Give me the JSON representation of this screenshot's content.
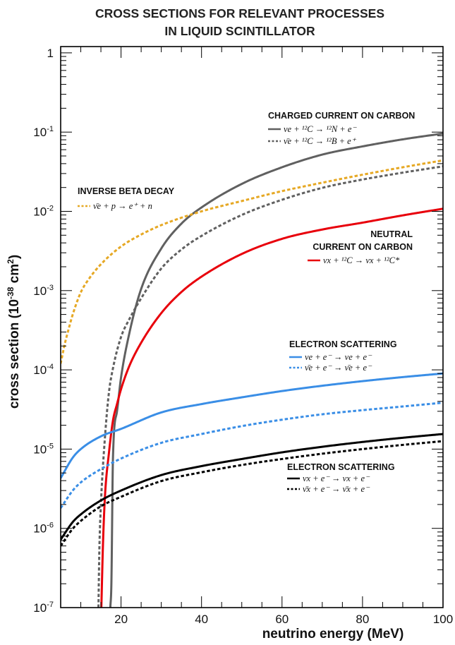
{
  "chart_data": {
    "type": "line",
    "title": [
      "CROSS SECTIONS FOR RELEVANT PROCESSES",
      "IN LIQUID SCINTILLATOR"
    ],
    "xlabel": "neutrino energy (MeV)",
    "ylabel": "cross section (10",
    "ylabel_exp": "-38",
    "ylabel_tail": " cm",
    "ylabel_sq": "2",
    "ylabel_close": ")",
    "xlim": [
      5,
      100
    ],
    "ylim": [
      1e-07,
      1.2
    ],
    "yscale": "log",
    "xticks": [
      20,
      40,
      60,
      80,
      100
    ],
    "xtick_labels": [
      "20",
      "40",
      "60",
      "80",
      "100"
    ],
    "yticks": [
      {
        "value": 1,
        "base": "1",
        "exp": ""
      },
      {
        "value": 0.1,
        "base": "10",
        "exp": "-1"
      },
      {
        "value": 0.01,
        "base": "10",
        "exp": "-2"
      },
      {
        "value": 0.001,
        "base": "10",
        "exp": "-3"
      },
      {
        "value": 0.0001,
        "base": "10",
        "exp": "-4"
      },
      {
        "value": 1e-05,
        "base": "10",
        "exp": "-5"
      },
      {
        "value": 1e-06,
        "base": "10",
        "exp": "-6"
      },
      {
        "value": 1e-07,
        "base": "10",
        "exp": "-7"
      }
    ],
    "groups": {
      "cc": "CHARGED CURRENT ON CARBON",
      "ibd": "INVERSE BETA DECAY",
      "nc": [
        "NEUTRAL",
        "CURRENT ON CARBON"
      ],
      "es1": "ELECTRON SCATTERING",
      "es2": "ELECTRON SCATTERING"
    },
    "series": [
      {
        "name": "νe + ¹²C → ¹²N + e⁻",
        "group": "cc",
        "color": "#606060",
        "dash": false,
        "x": [
          17.34,
          17.6,
          18,
          19,
          20,
          22,
          25,
          30,
          35,
          40,
          50,
          60,
          70,
          80,
          90,
          100
        ],
        "y": [
          1e-07,
          2e-07,
          8e-06,
          3e-05,
          8e-05,
          0.00028,
          0.00105,
          0.0034,
          0.007,
          0.0112,
          0.0222,
          0.036,
          0.052,
          0.066,
          0.081,
          0.096
        ]
      },
      {
        "name": "ν̄e + ¹²C → ¹²B + e⁺",
        "group": "cc",
        "color": "#606060",
        "dash": true,
        "x": [
          14.39,
          14.6,
          15,
          16,
          17,
          18,
          20,
          22,
          25,
          30,
          35,
          40,
          50,
          60,
          70,
          80,
          90,
          100
        ],
        "y": [
          1e-07,
          5e-07,
          2e-06,
          1.4e-05,
          5.2e-05,
          0.000105,
          0.00026,
          0.00043,
          0.0008,
          0.0019,
          0.0033,
          0.0049,
          0.009,
          0.014,
          0.0198,
          0.0252,
          0.0308,
          0.037
        ]
      },
      {
        "name": "ν̄e + p → e⁺ + n",
        "group": "ibd",
        "color": "#e6a824",
        "dash": true,
        "x": [
          5,
          6,
          7,
          8,
          10,
          12,
          15,
          20,
          25,
          30,
          40,
          50,
          60,
          70,
          80,
          90,
          100
        ],
        "y": [
          0.00012,
          0.00021,
          0.00033,
          0.0005,
          0.00095,
          0.0014,
          0.00215,
          0.0036,
          0.0051,
          0.0067,
          0.01,
          0.0135,
          0.018,
          0.023,
          0.029,
          0.036,
          0.044
        ]
      },
      {
        "name": "νx + ¹²C → νx + ¹²C*",
        "group": "nc",
        "color": "#e8000b",
        "dash": false,
        "x": [
          15.11,
          15.5,
          16,
          17,
          18,
          19,
          20,
          22,
          25,
          30,
          35,
          40,
          50,
          60,
          70,
          80,
          90,
          100
        ],
        "y": [
          1e-07,
          6e-07,
          2.5e-06,
          9e-06,
          2.3e-05,
          3.7e-05,
          5.7e-05,
          0.00011,
          0.00022,
          0.00052,
          0.00096,
          0.0015,
          0.0029,
          0.0045,
          0.0059,
          0.0072,
          0.0089,
          0.0108
        ]
      },
      {
        "name": "νe + e⁻ → νe + e⁻",
        "group": "es1",
        "color": "#3a8ee6",
        "dash": false,
        "x": [
          5,
          8,
          10,
          15,
          20,
          30,
          40,
          50,
          60,
          70,
          80,
          90,
          100
        ],
        "y": [
          4.3e-06,
          7.8e-06,
          1e-05,
          1.45e-05,
          1.8e-05,
          2.9e-05,
          3.7e-05,
          4.5e-05,
          5.4e-05,
          6.3e-05,
          7.2e-05,
          8.1e-05,
          9e-05
        ]
      },
      {
        "name": "ν̄e + e⁻ → ν̄e + e⁻",
        "group": "es1",
        "color": "#3a8ee6",
        "dash": true,
        "x": [
          5,
          8,
          10,
          15,
          20,
          30,
          40,
          50,
          60,
          70,
          80,
          90,
          100
        ],
        "y": [
          1.8e-06,
          3e-06,
          3.8e-06,
          5.6e-06,
          7.6e-06,
          1.2e-05,
          1.55e-05,
          1.95e-05,
          2.35e-05,
          2.75e-05,
          3.1e-05,
          3.45e-05,
          3.85e-05
        ]
      },
      {
        "name": "νx + e⁻ → νx + e⁻",
        "group": "es2",
        "color": "#000000",
        "dash": false,
        "x": [
          5,
          8,
          10,
          15,
          20,
          30,
          40,
          50,
          60,
          70,
          80,
          90,
          100
        ],
        "y": [
          7.2e-07,
          1.2e-06,
          1.5e-06,
          2.25e-06,
          3e-06,
          4.7e-06,
          6.1e-06,
          7.5e-06,
          9.1e-06,
          1.07e-05,
          1.23e-05,
          1.39e-05,
          1.55e-05
        ]
      },
      {
        "name": "ν̄x + e⁻ → ν̄x + e⁻",
        "group": "es2",
        "color": "#000000",
        "dash": true,
        "x": [
          5,
          8,
          10,
          15,
          20,
          30,
          40,
          50,
          60,
          70,
          80,
          90,
          100
        ],
        "y": [
          6e-07,
          9.9e-07,
          1.24e-06,
          1.9e-06,
          2.5e-06,
          3.95e-06,
          5.1e-06,
          6.3e-06,
          7.5e-06,
          8.75e-06,
          1e-05,
          1.13e-05,
          1.26e-05
        ]
      }
    ]
  }
}
